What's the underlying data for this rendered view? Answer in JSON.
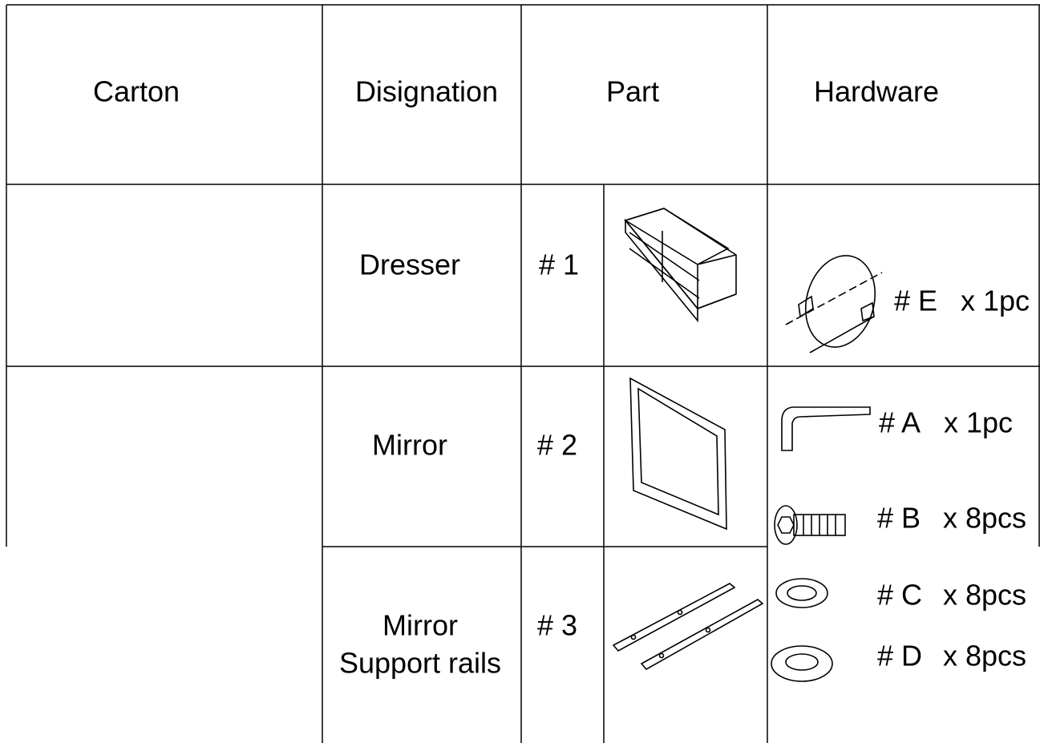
{
  "header": {
    "columns": [
      "Carton",
      "Disignation",
      "Part",
      "Hardware"
    ]
  },
  "rows": [
    {
      "designation": [
        "Dresser"
      ],
      "part_number": "# 1"
    },
    {
      "designation": [
        "Mirror"
      ],
      "part_number": "# 2"
    },
    {
      "designation": [
        "Mirror",
        "Support rails"
      ],
      "part_number": "# 3"
    }
  ],
  "hardware": [
    {
      "label": "# E",
      "qty": "x 1pc"
    },
    {
      "label": "# A",
      "qty": "x 1pc"
    },
    {
      "label": "# B",
      "qty": "x 8pcs"
    },
    {
      "label": "# C",
      "qty": "x 8pcs"
    },
    {
      "label": "# D",
      "qty": "x 8pcs"
    }
  ]
}
